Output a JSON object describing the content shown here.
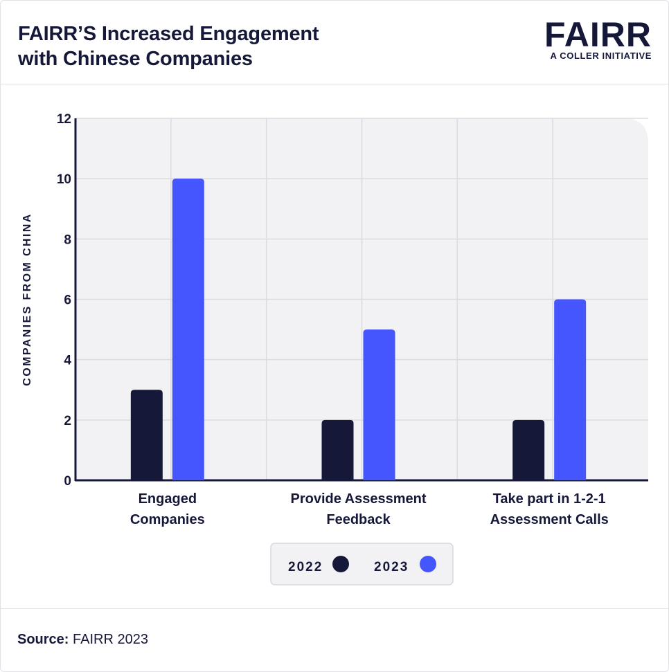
{
  "header": {
    "title_line1": "FAIRR’S Increased Engagement",
    "title_line2": "with Chinese Companies",
    "logo_word": "FAIRR",
    "logo_sub": "A COLLER INITIATIVE"
  },
  "chart_data": {
    "type": "bar",
    "title": "FAIRR’S Increased Engagement with Chinese Companies",
    "xlabel": "",
    "ylabel": "COMPANIES FROM CHINA",
    "ylim": [
      0,
      12
    ],
    "yticks": [
      0,
      2,
      4,
      6,
      8,
      10,
      12
    ],
    "grid": true,
    "legend_position": "bottom-center",
    "categories": [
      [
        "Engaged",
        "Companies"
      ],
      [
        "Provide Assessment",
        "Feedback"
      ],
      [
        "Take part in 1-2-1",
        "Assessment Calls"
      ]
    ],
    "series": [
      {
        "name": "2022",
        "color": "#16183a",
        "values": [
          3,
          2,
          2
        ]
      },
      {
        "name": "2023",
        "color": "#4656ff",
        "values": [
          10,
          5,
          6
        ]
      }
    ]
  },
  "colors": {
    "plot_bg": "#f2f2f4",
    "grid": "#dcdce0",
    "axis": "#16183a",
    "text": "#16183a",
    "legend_bg": "#f2f2f4",
    "legend_border": "#d8d8dc"
  },
  "footer": {
    "source_label": "Source:",
    "source_value": " FAIRR 2023"
  }
}
